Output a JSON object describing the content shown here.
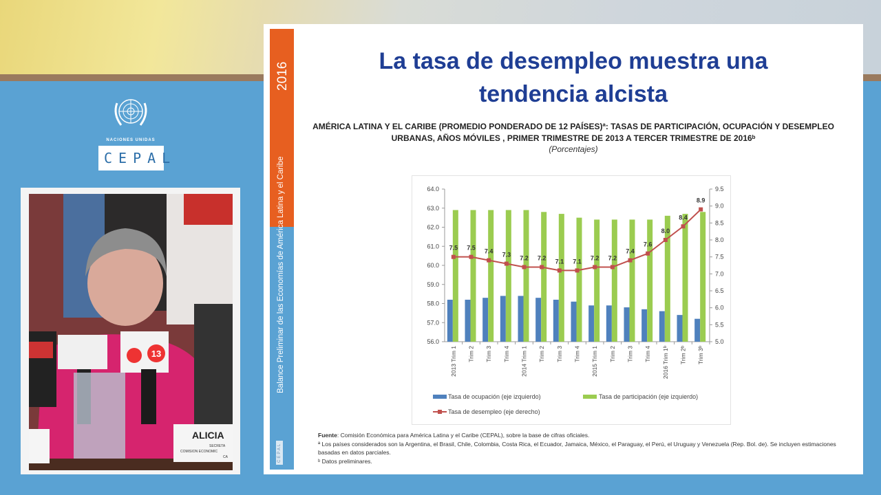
{
  "branding": {
    "org_line": "NACIONES UNIDAS",
    "org_name": "CEPAL"
  },
  "video": {
    "nameplate_name": "ALICIA",
    "nameplate_role_1": "SECRETA",
    "nameplate_role_2": "COMISION ECONOMIC",
    "nameplate_role_3": "CA",
    "mic_logo": "13"
  },
  "slide": {
    "year": "2016",
    "side_title": "Balance Preliminar de las Economías de América Latina y el Caribe",
    "side_logo": "CEPAL",
    "title_line1": "La tasa de desempleo muestra una",
    "title_line2": "tendencia alcista",
    "subtitle_line1": "AMÉRICA LATINA Y EL CARIBE (PROMEDIO PONDERADO DE 12 PAÍSES)ª: TASAS DE PARTICIPACIÓN, OCUPACIÓN Y DESEMPLEO",
    "subtitle_line2": "URBANAS, AÑOS MÓVILES , PRIMER TRIMESTRE DE 2013  A TERCER TRIMESTRE DE 2016ᵇ",
    "units": "(Porcentajes)",
    "notes": {
      "source_label": "Fuente",
      "source": ": Comisión Económica para América Latina y el Caribe (CEPAL), sobre la base de cifras oficiales.",
      "note_a": "ª Los países considerados son la Argentina, el Brasil, Chile, Colombia, Costa Rica, el Ecuador, Jamaica, México, el Paraguay, el Perú, el Uruguay y Venezuela (Rep. Bol. de). Se incluyen estimaciones basadas en datos parciales.",
      "note_b": "ᵇ Datos preliminares."
    }
  },
  "chart_data": {
    "type": "bar",
    "categories": [
      "2013 Trim 1",
      "Trim 2",
      "Trim 3",
      "Trim 4",
      "2014 Trim 1",
      "Trim 2",
      "Trim 3",
      "Trim 4",
      "2015 Trim 1",
      "Trim 2",
      "Trim 3",
      "Trim 4",
      "2016 Trim 1ᵇ",
      "Trim 2ᵇ",
      "Trim 3ᵇ"
    ],
    "y_left": {
      "range": [
        56.0,
        64.0
      ],
      "ticks": [
        "56.0",
        "57.0",
        "58.0",
        "59.0",
        "60.0",
        "61.0",
        "62.0",
        "63.0",
        "64.0"
      ]
    },
    "y_right": {
      "range": [
        5.0,
        9.5
      ],
      "ticks": [
        "5.0",
        "5.5",
        "6.0",
        "6.5",
        "7.0",
        "7.5",
        "8.0",
        "8.5",
        "9.0",
        "9.5"
      ]
    },
    "grid": false,
    "legend_position": "bottom",
    "series": [
      {
        "name": "Tasa de ocupación (eje izquierdo)",
        "type": "bar",
        "axis": "left",
        "color": "#4f81bd",
        "values": [
          58.2,
          58.2,
          58.3,
          58.4,
          58.4,
          58.3,
          58.2,
          58.1,
          57.9,
          57.9,
          57.8,
          57.7,
          57.6,
          57.4,
          57.2
        ]
      },
      {
        "name": "Tasa de participación (eje izquierdo)",
        "type": "bar",
        "axis": "left",
        "color": "#9bcc50",
        "values": [
          62.9,
          62.9,
          62.9,
          62.9,
          62.9,
          62.8,
          62.7,
          62.5,
          62.4,
          62.4,
          62.4,
          62.4,
          62.6,
          62.7,
          62.8
        ]
      },
      {
        "name": "Tasa de desempleo (eje derecho)",
        "type": "line",
        "axis": "right",
        "color": "#c0504d",
        "values": [
          7.5,
          7.5,
          7.4,
          7.3,
          7.2,
          7.2,
          7.1,
          7.1,
          7.2,
          7.2,
          7.4,
          7.6,
          8.0,
          8.4,
          8.9
        ],
        "labels": [
          "7.5",
          "7.5",
          "7.4",
          "7.3",
          "7.2",
          "7.2",
          "7.1",
          "7.1",
          "7.2",
          "7.2",
          "7.4",
          "7.6",
          "8.0",
          "8.4",
          "8.9"
        ]
      }
    ]
  }
}
